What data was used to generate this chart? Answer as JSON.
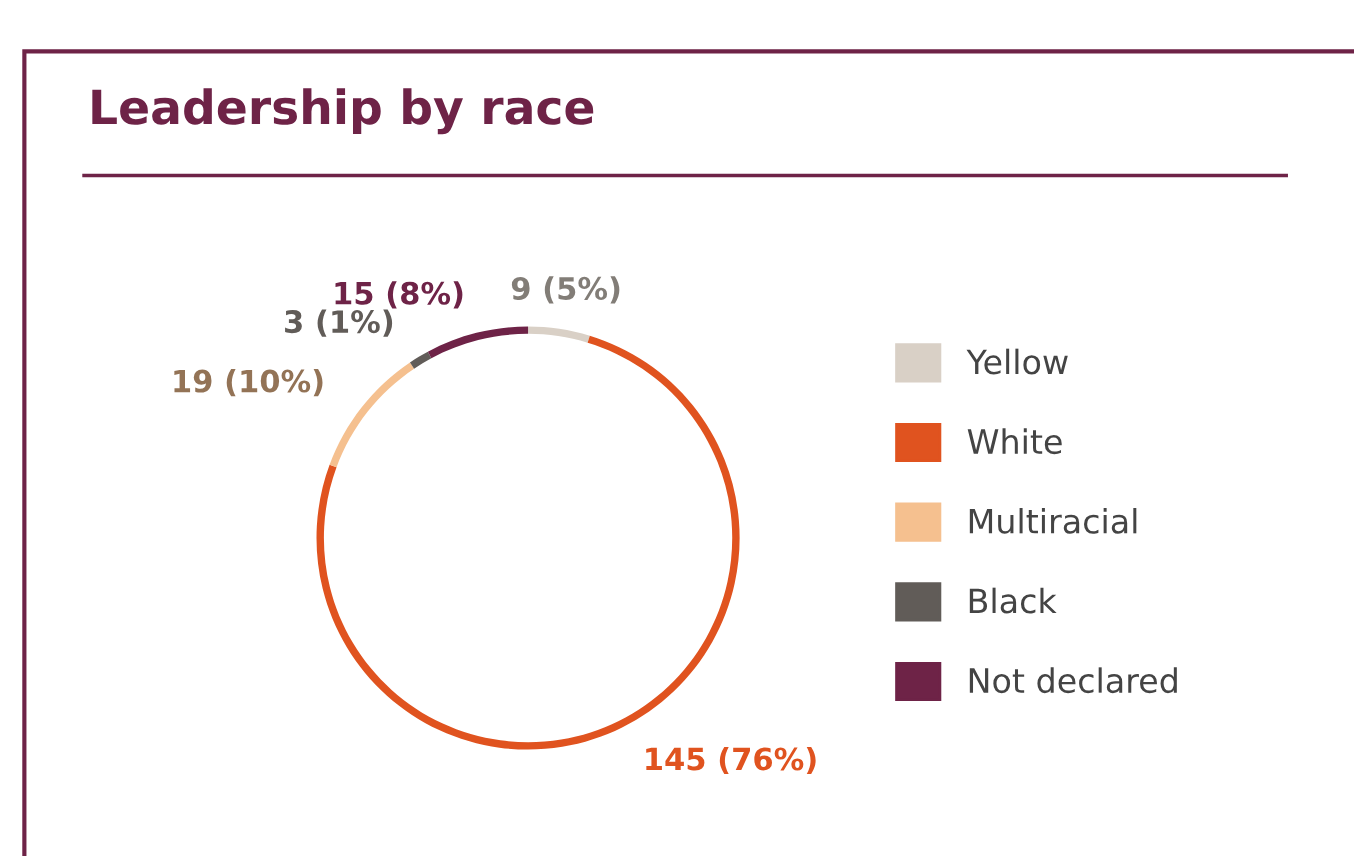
{
  "chart_data": {
    "type": "donut",
    "title": "Leadership by race",
    "categories": [
      "Yellow",
      "White",
      "Multiracial",
      "Black",
      "Not declared"
    ],
    "values": [
      9,
      145,
      19,
      3,
      15
    ],
    "colors": [
      "#d9d0c6",
      "#e0531f",
      "#f5c08f",
      "#615c58",
      "#6e2347"
    ],
    "value_labels": [
      "9 (5%)",
      "145 (76%)",
      "19 (10%)",
      "3 (1%)",
      "15 (8%)"
    ],
    "legend": "right"
  }
}
